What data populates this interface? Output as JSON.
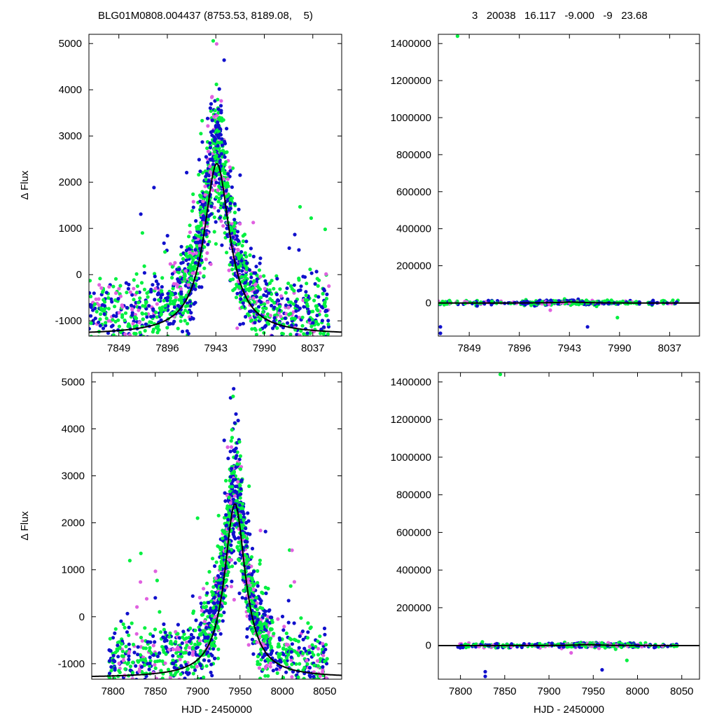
{
  "header": {
    "left": "BLG01M0808.004437 (8753.53, 8189.08,    5)",
    "right": "3   20038   16.117   -9.000   -9   23.68"
  },
  "colors": {
    "series_blue": "#1010cc",
    "series_magenta": "#e060e0",
    "series_green": "#00f040",
    "model_line": "#000000"
  },
  "chart_data": [
    {
      "id": "top-left",
      "type": "scatter",
      "xlim": [
        7820,
        8065
      ],
      "ylim": [
        -1330,
        5200
      ],
      "xticks": [
        7849,
        7896,
        7943,
        7990,
        8037
      ],
      "yticks": [
        -1000,
        0,
        1000,
        2000,
        3000,
        4000,
        5000
      ],
      "xlabel": "",
      "ylabel": "Δ Flux",
      "grid": false,
      "model": {
        "t0": 7944,
        "peak": 3700,
        "width": 15,
        "baseline": -1300
      },
      "scatter": {
        "seed": 11,
        "n_blue": 700,
        "n_magenta": 250,
        "n_green": 800,
        "x_start": 7820,
        "x_end": 8053
      },
      "outliers": []
    },
    {
      "id": "top-right",
      "type": "scatter",
      "xlim": [
        7820,
        8065
      ],
      "ylim": [
        -180000,
        1450000
      ],
      "xticks": [
        7849,
        7896,
        7943,
        7990,
        8037
      ],
      "yticks": [
        0,
        200000,
        400000,
        600000,
        800000,
        1000000,
        1200000,
        1400000
      ],
      "xlabel": "",
      "ylabel": "",
      "grid": false,
      "model": {
        "t0": 7944,
        "peak": 5000,
        "width": 15,
        "baseline": -1300
      },
      "scatter": {
        "seed": 23,
        "n_blue": 160,
        "n_magenta": 60,
        "n_green": 200,
        "x_start": 7820,
        "x_end": 8045,
        "spread": 12000
      },
      "outliers": [
        {
          "x": 7838,
          "y": 1440000,
          "series": "green"
        },
        {
          "x": 7822,
          "y": -130000,
          "series": "blue"
        },
        {
          "x": 7822,
          "y": -165000,
          "series": "blue"
        },
        {
          "x": 7960,
          "y": -130000,
          "series": "blue"
        },
        {
          "x": 7988,
          "y": -80000,
          "series": "green"
        },
        {
          "x": 7925,
          "y": -40000,
          "series": "magenta"
        }
      ]
    },
    {
      "id": "bottom-left",
      "type": "scatter",
      "xlim": [
        7775,
        8070
      ],
      "ylim": [
        -1330,
        5200
      ],
      "xticks": [
        7800,
        7850,
        7900,
        7950,
        8000,
        8050
      ],
      "yticks": [
        -1000,
        0,
        1000,
        2000,
        3000,
        4000,
        5000
      ],
      "xlabel": "HJD - 2450000",
      "ylabel": "Δ Flux",
      "grid": false,
      "model": {
        "t0": 7944,
        "peak": 3700,
        "width": 15,
        "baseline": -1300
      },
      "scatter": {
        "seed": 37,
        "n_blue": 700,
        "n_magenta": 250,
        "n_green": 800,
        "x_start": 7795,
        "x_end": 8053
      },
      "outliers": []
    },
    {
      "id": "bottom-right",
      "type": "scatter",
      "xlim": [
        7775,
        8070
      ],
      "ylim": [
        -180000,
        1450000
      ],
      "xticks": [
        7800,
        7850,
        7900,
        7950,
        8000,
        8050
      ],
      "yticks": [
        0,
        200000,
        400000,
        600000,
        800000,
        1000000,
        1200000,
        1400000
      ],
      "xlabel": "HJD - 2450000",
      "ylabel": "",
      "grid": false,
      "model": {
        "t0": 7944,
        "peak": 5000,
        "width": 15,
        "baseline": -1300
      },
      "scatter": {
        "seed": 53,
        "n_blue": 160,
        "n_magenta": 60,
        "n_green": 200,
        "x_start": 7795,
        "x_end": 8045,
        "spread": 12000
      },
      "outliers": [
        {
          "x": 7845,
          "y": 1440000,
          "series": "green"
        },
        {
          "x": 7828,
          "y": -140000,
          "series": "blue"
        },
        {
          "x": 7828,
          "y": -165000,
          "series": "blue"
        },
        {
          "x": 7960,
          "y": -130000,
          "series": "blue"
        },
        {
          "x": 7988,
          "y": -80000,
          "series": "green"
        },
        {
          "x": 7925,
          "y": -40000,
          "series": "magenta"
        }
      ]
    }
  ]
}
